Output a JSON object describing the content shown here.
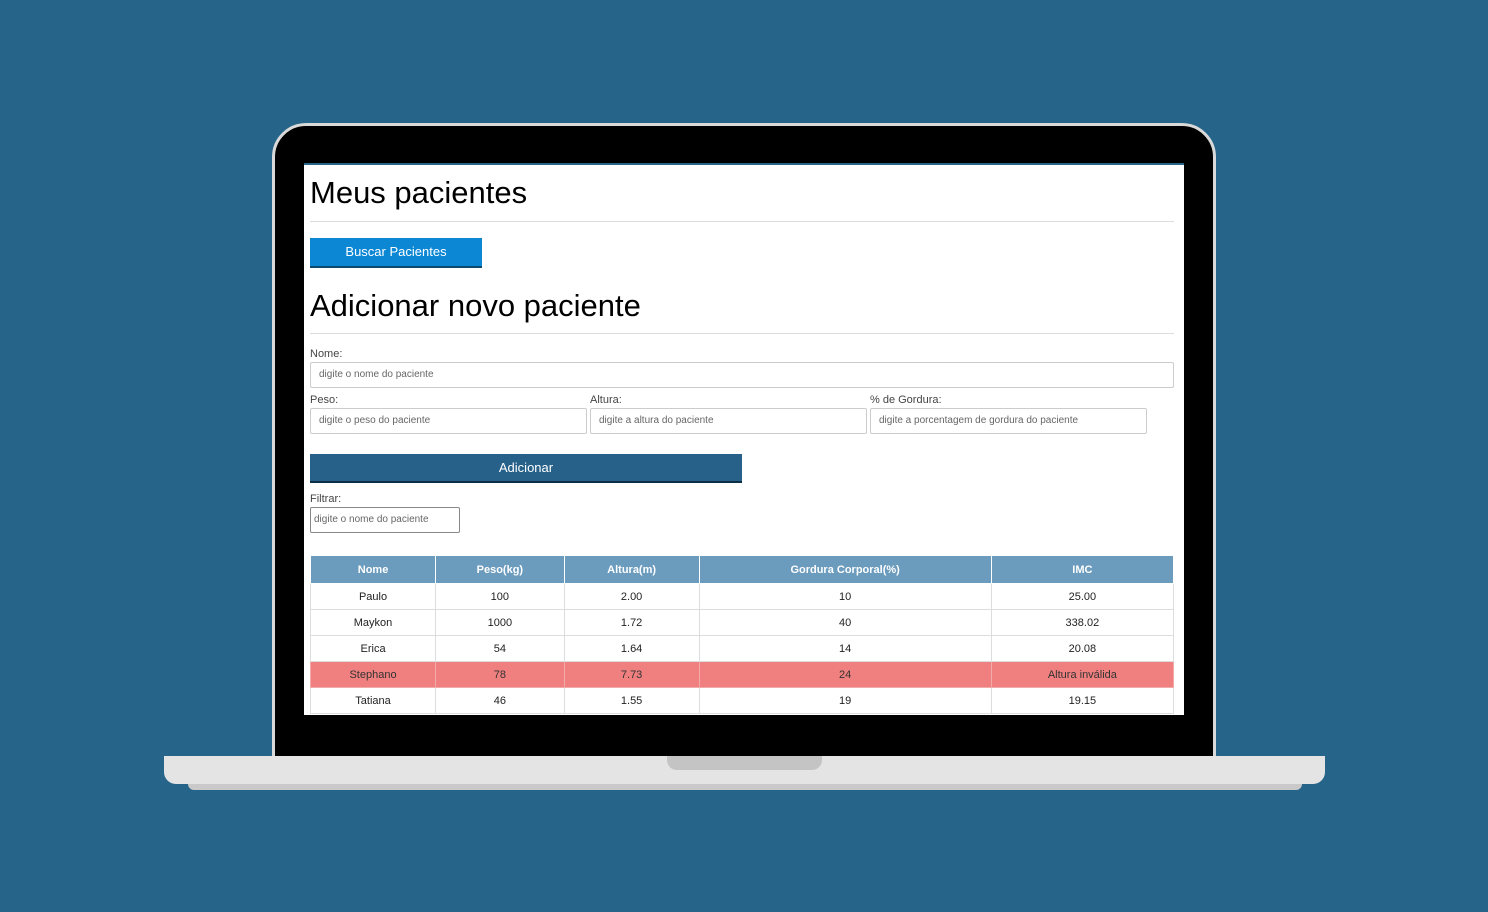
{
  "page": {
    "title": "Meus pacientes",
    "search_button": "Buscar Pacientes"
  },
  "form": {
    "title": "Adicionar novo paciente",
    "nome_label": "Nome:",
    "nome_placeholder": "digite o nome do paciente",
    "peso_label": "Peso:",
    "peso_placeholder": "digite o peso do paciente",
    "altura_label": "Altura:",
    "altura_placeholder": "digite a altura do paciente",
    "gordura_label": "% de Gordura:",
    "gordura_placeholder": "digite a porcentagem de gordura do paciente",
    "submit_label": "Adicionar"
  },
  "filter": {
    "label": "Filtrar:",
    "placeholder": "digite o nome do paciente"
  },
  "table": {
    "headers": [
      "Nome",
      "Peso(kg)",
      "Altura(m)",
      "Gordura Corporal(%)",
      "IMC"
    ],
    "rows": [
      [
        "Paulo",
        "100",
        "2.00",
        "10",
        "25.00"
      ],
      [
        "Maykon",
        "1000",
        "1.72",
        "40",
        "338.02"
      ],
      [
        "Erica",
        "54",
        "1.64",
        "14",
        "20.08"
      ],
      [
        "Stephano",
        "78",
        "7.73",
        "24",
        "Altura inválida"
      ],
      [
        "Tatiana",
        "46",
        "1.55",
        "19",
        "19.15"
      ]
    ]
  },
  "colors": {
    "background": "#276489",
    "header_row": "#6b9bbd",
    "invalid_row": "#f07f7f",
    "search_button": "#0c87d4",
    "add_button": "#27618a"
  }
}
